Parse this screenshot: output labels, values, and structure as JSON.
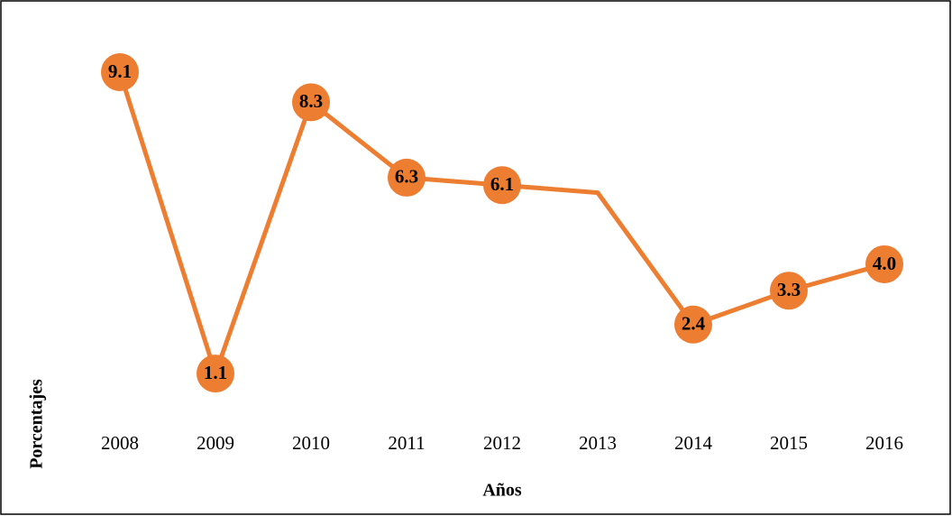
{
  "chart_data": {
    "type": "line",
    "x_label": "Años",
    "y_label": "Porcentajes",
    "categories": [
      "2008",
      "2009",
      "2010",
      "2011",
      "2012",
      "2013",
      "2014",
      "2015",
      "2016"
    ],
    "series": [
      {
        "color": "#ED7D31",
        "values": [
          9.1,
          1.1,
          8.3,
          6.3,
          6.1,
          5.9,
          2.4,
          3.3,
          4.0
        ],
        "value_labels": [
          "9.1",
          "1.1",
          "8.3",
          "6.3",
          "6.1",
          null,
          "2.4",
          "3.3",
          "4.0"
        ]
      }
    ],
    "ylim": [
      0,
      10
    ]
  }
}
